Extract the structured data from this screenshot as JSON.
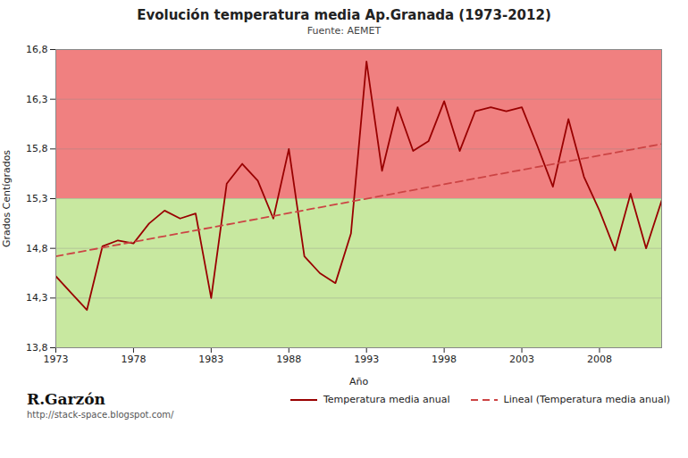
{
  "chart_data": {
    "type": "line",
    "title": "Evolución temperatura media  Ap.Granada (1973-2012)",
    "subtitle": "Fuente: AEMET",
    "xlabel": "Año",
    "ylabel": "Grados Centígrados",
    "x": [
      1973,
      1974,
      1975,
      1976,
      1977,
      1978,
      1979,
      1980,
      1981,
      1982,
      1983,
      1984,
      1985,
      1986,
      1987,
      1988,
      1989,
      1990,
      1991,
      1992,
      1993,
      1994,
      1995,
      1996,
      1997,
      1998,
      1999,
      2000,
      2001,
      2002,
      2003,
      2004,
      2005,
      2006,
      2007,
      2008,
      2009,
      2010,
      2011,
      2012
    ],
    "series": [
      {
        "name": "Temperatura media anual",
        "color": "#990000",
        "line_style": "solid",
        "values": [
          14.52,
          14.35,
          14.18,
          14.82,
          14.88,
          14.85,
          15.05,
          15.18,
          15.1,
          15.15,
          14.3,
          15.45,
          15.65,
          15.48,
          15.1,
          15.8,
          14.72,
          14.55,
          14.45,
          14.95,
          16.68,
          15.58,
          16.22,
          15.78,
          15.88,
          16.28,
          15.78,
          16.18,
          16.22,
          16.18,
          16.22,
          15.83,
          15.42,
          16.1,
          15.52,
          15.18,
          14.78,
          15.35,
          14.8,
          15.28
        ]
      },
      {
        "name": "Lineal (Temperatura media anual)",
        "color": "#cc4444",
        "line_style": "dashed",
        "x": [
          1973,
          2012
        ],
        "values": [
          14.72,
          15.85
        ]
      }
    ],
    "bands": [
      {
        "from": 15.3,
        "to": 16.8,
        "color": "#f08080"
      },
      {
        "from": 13.8,
        "to": 15.3,
        "color": "#c8e8a0"
      }
    ],
    "xlim": [
      1973,
      2012
    ],
    "xticks": [
      1973,
      1978,
      1983,
      1988,
      1993,
      1998,
      2003,
      2008
    ],
    "ylim": [
      13.8,
      16.8
    ],
    "yticks": [
      {
        "value": 13.8,
        "label": "13,8"
      },
      {
        "value": 14.3,
        "label": "14,3"
      },
      {
        "value": 14.8,
        "label": "14,8"
      },
      {
        "value": 15.3,
        "label": "15,3"
      },
      {
        "value": 15.8,
        "label": "15,8"
      },
      {
        "value": 16.3,
        "label": "16,3"
      },
      {
        "value": 16.8,
        "label": "16,8"
      }
    ],
    "grid": "y",
    "legend": "bottom",
    "annotations": [
      {
        "text": "R.Garzón"
      },
      {
        "text": "http://stack-space.blogspot.com/"
      }
    ]
  }
}
